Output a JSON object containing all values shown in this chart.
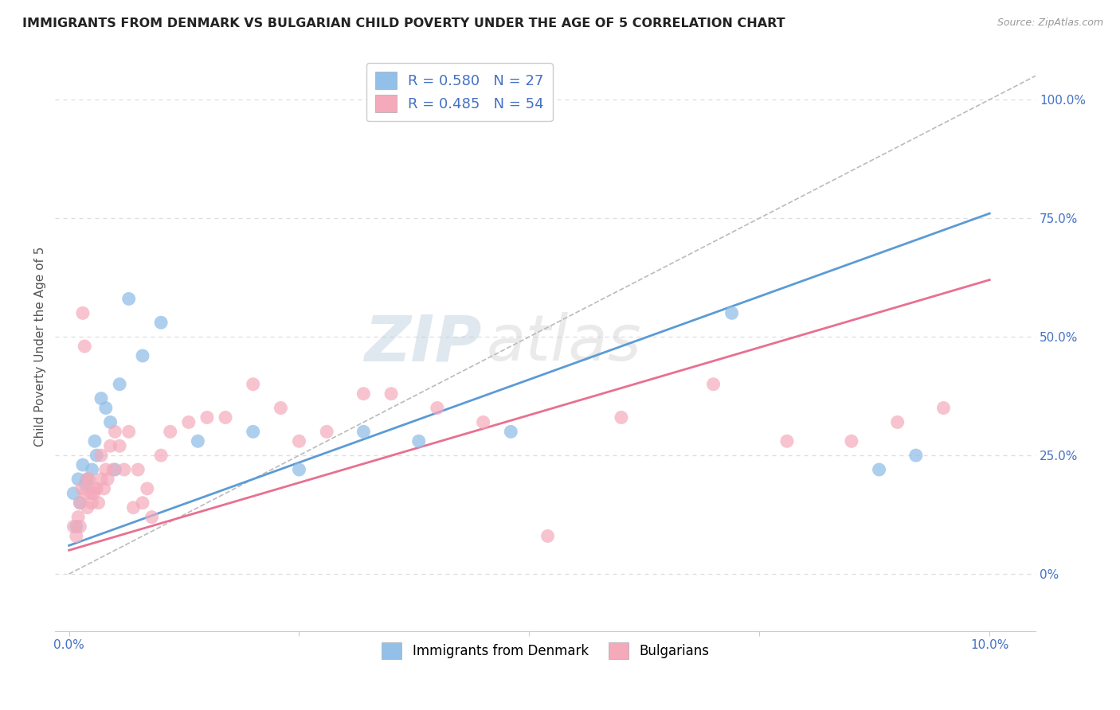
{
  "title": "IMMIGRANTS FROM DENMARK VS BULGARIAN CHILD POVERTY UNDER THE AGE OF 5 CORRELATION CHART",
  "source": "Source: ZipAtlas.com",
  "ylabel": "Child Poverty Under the Age of 5",
  "blue_color": "#92C0E8",
  "pink_color": "#F4AABB",
  "blue_line_color": "#5B9BD5",
  "pink_line_color": "#E87090",
  "gray_dash_color": "#BBBBBB",
  "legend_blue_label": "R = 0.580   N = 27",
  "legend_pink_label": "R = 0.485   N = 54",
  "watermark_zip": "ZIP",
  "watermark_atlas": "atlas",
  "R_blue": 0.58,
  "N_blue": 27,
  "R_pink": 0.485,
  "N_pink": 54,
  "blue_scatter_x": [
    0.05,
    0.08,
    0.1,
    0.12,
    0.15,
    0.18,
    0.2,
    0.25,
    0.28,
    0.3,
    0.35,
    0.4,
    0.45,
    0.5,
    0.55,
    0.65,
    0.8,
    1.0,
    1.4,
    2.0,
    2.5,
    3.2,
    4.8,
    7.2,
    8.8,
    9.2,
    3.8
  ],
  "blue_scatter_y": [
    17,
    10,
    20,
    15,
    23,
    19,
    20,
    22,
    28,
    25,
    37,
    35,
    32,
    22,
    40,
    58,
    46,
    53,
    28,
    30,
    22,
    30,
    30,
    55,
    22,
    25,
    28
  ],
  "pink_scatter_x": [
    0.05,
    0.08,
    0.1,
    0.12,
    0.12,
    0.14,
    0.15,
    0.17,
    0.18,
    0.2,
    0.22,
    0.24,
    0.25,
    0.27,
    0.28,
    0.3,
    0.32,
    0.35,
    0.38,
    0.4,
    0.42,
    0.45,
    0.48,
    0.5,
    0.55,
    0.6,
    0.65,
    0.7,
    0.75,
    0.8,
    0.85,
    0.9,
    1.0,
    1.1,
    1.3,
    1.5,
    1.7,
    2.0,
    2.3,
    2.5,
    2.8,
    3.2,
    3.5,
    4.0,
    4.5,
    5.2,
    6.0,
    7.0,
    7.8,
    8.5,
    9.0,
    9.5,
    0.2,
    0.35
  ],
  "pink_scatter_y": [
    10,
    8,
    12,
    15,
    10,
    18,
    55,
    48,
    17,
    14,
    20,
    17,
    15,
    17,
    18,
    18,
    15,
    20,
    18,
    22,
    20,
    27,
    22,
    30,
    27,
    22,
    30,
    14,
    22,
    15,
    18,
    12,
    25,
    30,
    32,
    33,
    33,
    40,
    35,
    28,
    30,
    38,
    38,
    35,
    32,
    8,
    33,
    40,
    28,
    28,
    32,
    35,
    20,
    25
  ],
  "blue_trend_x0": 0.0,
  "blue_trend_y0": 6.0,
  "blue_trend_x1": 10.0,
  "blue_trend_y1": 76.0,
  "pink_trend_x0": 0.0,
  "pink_trend_y0": 5.0,
  "pink_trend_x1": 10.0,
  "pink_trend_y1": 62.0,
  "gray_dash_x0": 0.0,
  "gray_dash_y0": 0.0,
  "gray_dash_x1": 10.5,
  "gray_dash_y1": 105.0,
  "xlim_min": -0.15,
  "xlim_max": 10.5,
  "ylim_min": -12.0,
  "ylim_max": 108.0,
  "y_ticks": [
    0,
    25,
    50,
    75,
    100
  ],
  "y_tick_labels": [
    "0%",
    "25.0%",
    "50.0%",
    "75.0%",
    "100.0%"
  ],
  "x_ticks": [
    0.0,
    2.5,
    5.0,
    7.5,
    10.0
  ],
  "x_tick_labels": [
    "0.0%",
    "",
    "",
    "",
    "10.0%"
  ],
  "background_color": "#FFFFFF",
  "grid_color": "#DDDDDD",
  "tick_color": "#4472C4",
  "title_color": "#222222",
  "source_color": "#999999",
  "ylabel_color": "#555555"
}
